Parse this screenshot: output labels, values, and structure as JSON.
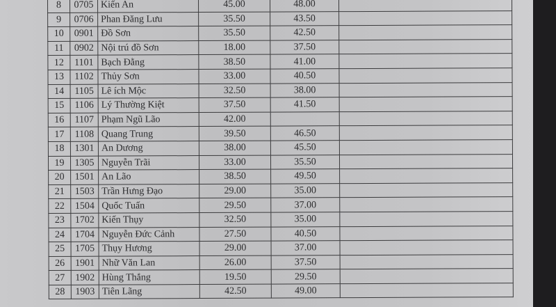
{
  "table": {
    "rows": [
      {
        "stt": "8",
        "code": "0705",
        "name": "Kiến An",
        "score1": "45.00",
        "score2": "48.00"
      },
      {
        "stt": "9",
        "code": "0706",
        "name": "Phan Đăng Lưu",
        "score1": "35.50",
        "score2": "43.50"
      },
      {
        "stt": "10",
        "code": "0901",
        "name": "Đồ Sơn",
        "score1": "35.50",
        "score2": "42.50"
      },
      {
        "stt": "11",
        "code": "0902",
        "name": "Nội trú đồ Sơn",
        "score1": "18.00",
        "score2": "37.50"
      },
      {
        "stt": "12",
        "code": "1101",
        "name": "Bạch Đằng",
        "score1": "38.50",
        "score2": "41.00"
      },
      {
        "stt": "13",
        "code": "1102",
        "name": "Thủy Sơn",
        "score1": "33.00",
        "score2": "40.50"
      },
      {
        "stt": "14",
        "code": "1105",
        "name": "Lê ích Mộc",
        "score1": "32.50",
        "score2": "38.00"
      },
      {
        "stt": "15",
        "code": "1106",
        "name": "Lý Thường Kiệt",
        "score1": "37.50",
        "score2": "41.50"
      },
      {
        "stt": "16",
        "code": "1107",
        "name": "Phạm Ngũ Lão",
        "score1": "42.00",
        "score2": ""
      },
      {
        "stt": "17",
        "code": "1108",
        "name": "Quang Trung",
        "score1": "39.50",
        "score2": "46.50"
      },
      {
        "stt": "18",
        "code": "1301",
        "name": "An Dương",
        "score1": "38.00",
        "score2": "45.50"
      },
      {
        "stt": "19",
        "code": "1305",
        "name": "Nguyễn Trãi",
        "score1": "33.00",
        "score2": "35.50"
      },
      {
        "stt": "20",
        "code": "1501",
        "name": "An Lão",
        "score1": "38.50",
        "score2": "49.50"
      },
      {
        "stt": "21",
        "code": "1503",
        "name": "Trần Hưng Đạo",
        "score1": "29.00",
        "score2": "35.00"
      },
      {
        "stt": "22",
        "code": "1504",
        "name": "Quốc Tuấn",
        "score1": "29.50",
        "score2": "37.00"
      },
      {
        "stt": "23",
        "code": "1702",
        "name": "Kiến Thụy",
        "score1": "32.50",
        "score2": "35.00"
      },
      {
        "stt": "24",
        "code": "1704",
        "name": "Nguyễn Đức Cảnh",
        "score1": "27.50",
        "score2": "40.50"
      },
      {
        "stt": "25",
        "code": "1705",
        "name": "Thụy Hương",
        "score1": "29.00",
        "score2": "37.00"
      },
      {
        "stt": "26",
        "code": "1901",
        "name": "Nhữ Văn Lan",
        "score1": "26.00",
        "score2": "37.50"
      },
      {
        "stt": "27",
        "code": "1902",
        "name": "Hùng Thắng",
        "score1": "19.50",
        "score2": "29.50"
      },
      {
        "stt": "28",
        "code": "1903",
        "name": "Tiên Lãng",
        "score1": "42.50",
        "score2": "49.00"
      }
    ]
  }
}
